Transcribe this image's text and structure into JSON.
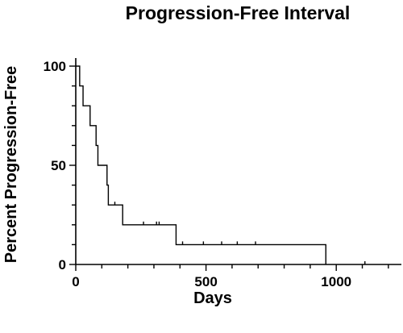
{
  "chart_data": {
    "type": "line",
    "subtype": "kaplan-meier-step",
    "title": "Progression-Free Interval",
    "xlabel": "Days",
    "ylabel": "Percent Progression-Free",
    "xlim": [
      0,
      1250
    ],
    "ylim": [
      0,
      100
    ],
    "x_ticks": [
      0,
      500,
      1000
    ],
    "y_ticks": [
      0,
      50,
      100
    ],
    "grid": false,
    "legend": "none",
    "line_color": "#000000",
    "series": [
      {
        "steps": [
          [
            0,
            100
          ],
          [
            15,
            100
          ],
          [
            15,
            90
          ],
          [
            28,
            90
          ],
          [
            28,
            80
          ],
          [
            55,
            80
          ],
          [
            55,
            70
          ],
          [
            78,
            70
          ],
          [
            78,
            60
          ],
          [
            85,
            60
          ],
          [
            85,
            50
          ],
          [
            120,
            50
          ],
          [
            120,
            40
          ],
          [
            125,
            40
          ],
          [
            125,
            30
          ],
          [
            180,
            30
          ],
          [
            180,
            20
          ],
          [
            385,
            20
          ],
          [
            385,
            10
          ],
          [
            960,
            10
          ],
          [
            960,
            0
          ]
        ],
        "censored": [
          [
            150,
            30
          ],
          [
            260,
            20
          ],
          [
            310,
            20
          ],
          [
            320,
            20
          ],
          [
            410,
            10
          ],
          [
            490,
            10
          ],
          [
            560,
            10
          ],
          [
            620,
            10
          ],
          [
            690,
            10
          ],
          [
            1110,
            0
          ]
        ]
      }
    ]
  }
}
